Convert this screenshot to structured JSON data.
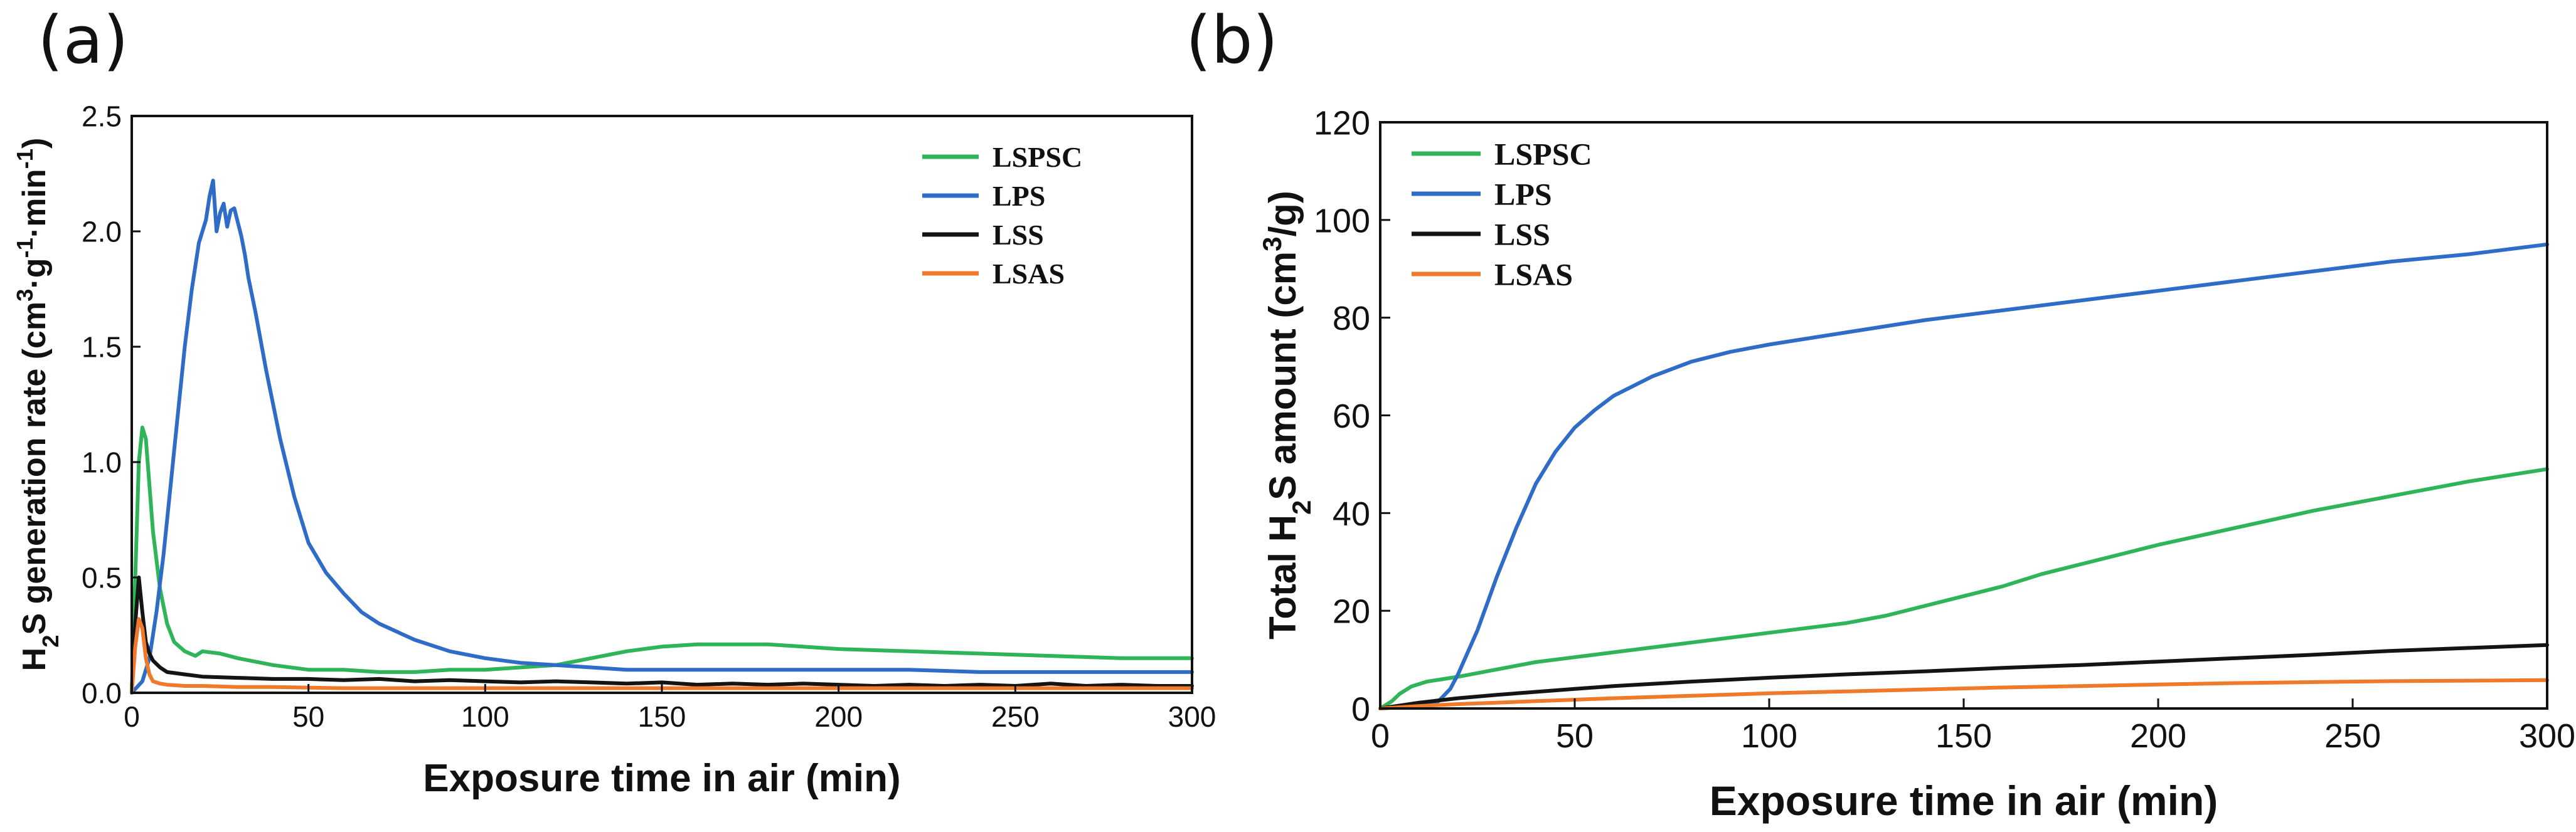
{
  "colors": {
    "LSPSC": "#2fb45a",
    "LPS": "#2f6cc8",
    "LSS": "#141414",
    "LSAS": "#f07a2c"
  },
  "chart_data": [
    {
      "type": "line",
      "panel_label": "(a)",
      "xlabel": "Exposure time in air (min)",
      "ylabel_parts": [
        "H",
        "2",
        "S generation rate (cm",
        "3",
        "·g",
        "-1",
        "·min",
        "-1",
        ")"
      ],
      "xlim": [
        0,
        300
      ],
      "ylim": [
        0,
        2.5
      ],
      "xticks": [
        0,
        50,
        100,
        150,
        200,
        250,
        300
      ],
      "yticks": [
        0.0,
        0.5,
        1.0,
        1.5,
        2.0,
        2.5
      ],
      "ytick_labels": [
        "0.0",
        "0.5",
        "1.0",
        "1.5",
        "2.0",
        "2.5"
      ],
      "grid": false,
      "legend_position": "top-right",
      "series": [
        {
          "name": "LSPSC",
          "color_key": "LSPSC",
          "x": [
            0,
            1,
            2,
            3,
            4,
            5,
            6,
            8,
            10,
            12,
            15,
            18,
            20,
            25,
            30,
            40,
            50,
            60,
            70,
            80,
            90,
            100,
            110,
            120,
            130,
            140,
            150,
            160,
            170,
            180,
            190,
            200,
            220,
            240,
            260,
            280,
            300
          ],
          "y": [
            0.0,
            0.5,
            1.0,
            1.15,
            1.1,
            0.9,
            0.7,
            0.45,
            0.3,
            0.22,
            0.18,
            0.16,
            0.18,
            0.17,
            0.15,
            0.12,
            0.1,
            0.1,
            0.09,
            0.09,
            0.1,
            0.1,
            0.11,
            0.12,
            0.15,
            0.18,
            0.2,
            0.21,
            0.21,
            0.21,
            0.2,
            0.19,
            0.18,
            0.17,
            0.16,
            0.15,
            0.15
          ]
        },
        {
          "name": "LPS",
          "color_key": "LPS",
          "x": [
            0,
            3,
            5,
            7,
            9,
            11,
            13,
            15,
            17,
            19,
            21,
            22,
            23,
            24,
            25,
            26,
            27,
            28,
            29,
            30,
            31,
            32,
            33,
            35,
            38,
            42,
            46,
            50,
            55,
            60,
            65,
            70,
            80,
            90,
            100,
            110,
            120,
            130,
            140,
            150,
            160,
            180,
            200,
            220,
            240,
            260,
            280,
            300
          ],
          "y": [
            0.0,
            0.05,
            0.15,
            0.35,
            0.6,
            0.9,
            1.2,
            1.5,
            1.75,
            1.95,
            2.05,
            2.15,
            2.22,
            2.0,
            2.08,
            2.12,
            2.02,
            2.09,
            2.1,
            2.04,
            1.98,
            1.9,
            1.8,
            1.65,
            1.4,
            1.1,
            0.85,
            0.65,
            0.52,
            0.43,
            0.35,
            0.3,
            0.23,
            0.18,
            0.15,
            0.13,
            0.12,
            0.11,
            0.1,
            0.1,
            0.1,
            0.1,
            0.1,
            0.1,
            0.09,
            0.09,
            0.09,
            0.09
          ]
        },
        {
          "name": "LSS",
          "color_key": "LSS",
          "x": [
            0,
            1,
            2,
            3,
            4,
            5,
            6,
            8,
            10,
            15,
            20,
            30,
            40,
            50,
            60,
            70,
            80,
            90,
            100,
            110,
            120,
            130,
            140,
            150,
            160,
            170,
            180,
            190,
            200,
            210,
            220,
            230,
            240,
            250,
            260,
            270,
            280,
            290,
            300
          ],
          "y": [
            0.0,
            0.3,
            0.5,
            0.35,
            0.22,
            0.17,
            0.14,
            0.11,
            0.09,
            0.08,
            0.07,
            0.065,
            0.06,
            0.06,
            0.055,
            0.06,
            0.05,
            0.055,
            0.05,
            0.045,
            0.05,
            0.045,
            0.04,
            0.045,
            0.035,
            0.04,
            0.035,
            0.04,
            0.035,
            0.03,
            0.035,
            0.03,
            0.035,
            0.03,
            0.04,
            0.03,
            0.035,
            0.03,
            0.03
          ]
        },
        {
          "name": "LSAS",
          "color_key": "LSAS",
          "x": [
            0,
            1,
            2,
            3,
            4,
            5,
            6,
            8,
            10,
            15,
            20,
            30,
            40,
            60,
            80,
            100,
            120,
            140,
            160,
            180,
            200,
            220,
            240,
            260,
            280,
            300
          ],
          "y": [
            0.0,
            0.2,
            0.32,
            0.28,
            0.15,
            0.08,
            0.05,
            0.04,
            0.035,
            0.03,
            0.03,
            0.025,
            0.025,
            0.02,
            0.02,
            0.02,
            0.02,
            0.02,
            0.02,
            0.02,
            0.02,
            0.02,
            0.02,
            0.02,
            0.02,
            0.02
          ]
        }
      ]
    },
    {
      "type": "line",
      "panel_label": "(b)",
      "xlabel": "Exposure time in air (min)",
      "ylabel_parts": [
        "Total H",
        "2",
        "S amount (cm",
        "3",
        "/g)"
      ],
      "xlim": [
        0,
        300
      ],
      "ylim": [
        0,
        120
      ],
      "xticks": [
        0,
        50,
        100,
        150,
        200,
        250,
        300
      ],
      "yticks": [
        0,
        20,
        40,
        60,
        80,
        100,
        120
      ],
      "ytick_labels": [
        "0",
        "20",
        "40",
        "60",
        "80",
        "100",
        "120"
      ],
      "grid": false,
      "legend_position": "top-left",
      "series": [
        {
          "name": "LSPSC",
          "color_key": "LSPSC",
          "x": [
            0,
            3,
            5,
            8,
            12,
            20,
            30,
            40,
            50,
            60,
            80,
            100,
            120,
            130,
            140,
            150,
            160,
            170,
            180,
            190,
            200,
            220,
            240,
            260,
            280,
            300
          ],
          "y": [
            0,
            1.5,
            3,
            4.5,
            5.5,
            6.5,
            8,
            9.5,
            10.5,
            11.5,
            13.5,
            15.5,
            17.5,
            19,
            21,
            23,
            25,
            27.5,
            29.5,
            31.5,
            33.5,
            37,
            40.5,
            43.5,
            46.5,
            49
          ]
        },
        {
          "name": "LPS",
          "color_key": "LPS",
          "x": [
            0,
            10,
            15,
            18,
            20,
            25,
            30,
            35,
            40,
            45,
            50,
            55,
            60,
            70,
            80,
            90,
            100,
            120,
            140,
            160,
            180,
            200,
            220,
            240,
            260,
            280,
            300
          ],
          "y": [
            0,
            0.5,
            1.5,
            4,
            7,
            16,
            27,
            37,
            46,
            52.5,
            57.5,
            61,
            64,
            68,
            71,
            73,
            74.5,
            77,
            79.5,
            81.5,
            83.5,
            85.5,
            87.5,
            89.5,
            91.5,
            93,
            95
          ]
        },
        {
          "name": "LSS",
          "color_key": "LSS",
          "x": [
            0,
            10,
            20,
            30,
            40,
            50,
            60,
            80,
            100,
            120,
            140,
            160,
            180,
            200,
            220,
            240,
            260,
            280,
            300
          ],
          "y": [
            0,
            1.2,
            2.1,
            2.8,
            3.4,
            4,
            4.6,
            5.5,
            6.3,
            7,
            7.6,
            8.3,
            8.9,
            9.6,
            10.3,
            11,
            11.8,
            12.4,
            13
          ]
        },
        {
          "name": "LSAS",
          "color_key": "LSAS",
          "x": [
            0,
            10,
            20,
            30,
            40,
            50,
            60,
            80,
            100,
            120,
            140,
            160,
            180,
            200,
            220,
            240,
            260,
            280,
            300
          ],
          "y": [
            0,
            0.5,
            0.9,
            1.2,
            1.5,
            1.8,
            2.1,
            2.6,
            3.1,
            3.5,
            3.9,
            4.3,
            4.6,
            4.9,
            5.2,
            5.4,
            5.6,
            5.7,
            5.8
          ]
        }
      ]
    }
  ]
}
